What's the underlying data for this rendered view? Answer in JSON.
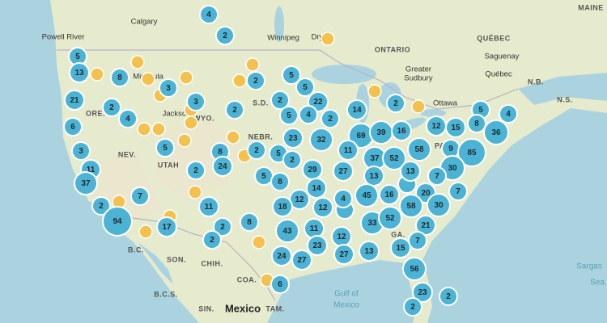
{
  "places": [
    {
      "label": "Calgary"
    },
    {
      "label": "Powell River"
    },
    {
      "label": "Winnipeg"
    },
    {
      "label": "Dry"
    },
    {
      "label": "ONTARIO"
    },
    {
      "label": "QUÉBEC"
    },
    {
      "label": "Saguenay"
    },
    {
      "label": "Québec"
    },
    {
      "label": "N.B."
    },
    {
      "label": "N.S."
    },
    {
      "label": "Greater"
    },
    {
      "label": "Sudbury"
    },
    {
      "label": "Ottawa"
    },
    {
      "label": "Missoula"
    },
    {
      "label": "ORE."
    },
    {
      "label": "Jackson"
    },
    {
      "label": "WYO."
    },
    {
      "label": "S.D."
    },
    {
      "label": "NEBR."
    },
    {
      "label": "NEV."
    },
    {
      "label": "UTAH"
    },
    {
      "label": "PA."
    },
    {
      "label": "GA."
    },
    {
      "label": "B.C."
    },
    {
      "label": "SON."
    },
    {
      "label": "CHIH."
    },
    {
      "label": "COA."
    },
    {
      "label": "B.C.S."
    },
    {
      "label": "SIN."
    },
    {
      "label": "Mexico"
    },
    {
      "label": "TAM."
    },
    {
      "label": "Gulf of"
    },
    {
      "label": "Mexico"
    },
    {
      "label": "Sargas"
    },
    {
      "label": "Sea"
    },
    {
      "label": "MAINE"
    }
  ],
  "clusters": [
    "4",
    "2",
    "5",
    "13",
    "8",
    "3",
    "2",
    "5",
    "5",
    "22",
    "3",
    "2",
    "2",
    "21",
    "2",
    "4",
    "5",
    "4",
    "2",
    "14",
    "2",
    "5",
    "4",
    "6",
    "12",
    "15",
    "8",
    "36",
    "69",
    "39",
    "16",
    "23",
    "32",
    "11",
    "3",
    "5",
    "8",
    "2",
    "5",
    "37",
    "52",
    "58",
    "9",
    "85",
    "11",
    "2",
    "24",
    "2",
    "5",
    "8",
    "29",
    "27",
    "13",
    "13",
    "30",
    "37",
    "14",
    "12",
    "4",
    "45",
    "16",
    "20",
    "7",
    "7",
    "2",
    "11",
    "18",
    "12",
    "58",
    "30",
    "94",
    "2",
    "8",
    "11",
    "43",
    "33",
    "52",
    "21",
    "17",
    "2",
    "12",
    "23",
    "7",
    "15",
    "27",
    "13",
    "24",
    "27",
    "56",
    "6",
    "23",
    "2",
    "2",
    "7"
  ]
}
